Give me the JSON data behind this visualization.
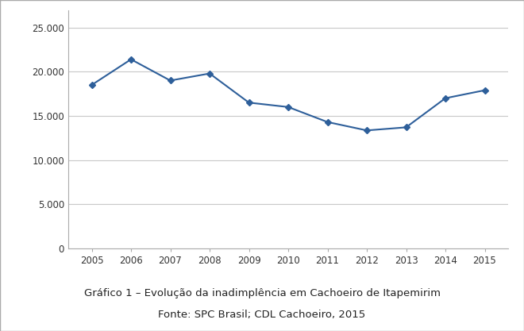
{
  "years": [
    2005,
    2006,
    2007,
    2008,
    2009,
    2010,
    2011,
    2012,
    2013,
    2014,
    2015
  ],
  "values": [
    18500,
    21400,
    19000,
    19800,
    16500,
    16000,
    14300,
    13350,
    13700,
    17000,
    17900
  ],
  "line_color": "#2E5F9A",
  "marker": "D",
  "marker_size": 4.5,
  "ylim": [
    0,
    27000
  ],
  "yticks": [
    0,
    5000,
    10000,
    15000,
    20000,
    25000
  ],
  "ytick_labels": [
    "0",
    "5.000",
    "10.000",
    "15.000",
    "20.000",
    "25.000"
  ],
  "title": "Gráfico 1 – Evolução da inadimplência em Cachoeiro de Itapemirim",
  "subtitle": "Fonte: SPC Brasil; CDL Cachoeiro, 2015",
  "title_fontsize": 9.5,
  "subtitle_fontsize": 9.5,
  "tick_fontsize": 8.5,
  "grid_color": "#c8c8c8",
  "background_color": "#ffffff",
  "line_width": 1.5,
  "border_color": "#aaaaaa"
}
